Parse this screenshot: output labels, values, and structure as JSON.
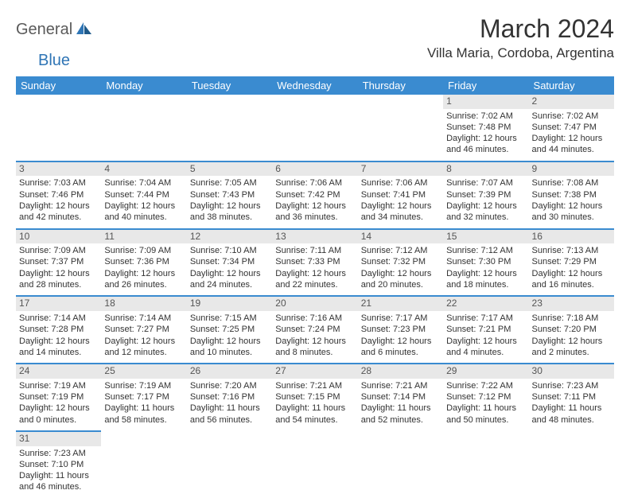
{
  "brand": {
    "text1": "General",
    "text2": "Blue"
  },
  "title": "March 2024",
  "location": "Villa Maria, Cordoba, Argentina",
  "colors": {
    "header_bg": "#3a8bd0",
    "header_text": "#ffffff",
    "daynum_bg": "#e8e8e8",
    "border": "#3a8bd0",
    "body_text": "#333333",
    "brand_gray": "#5a5a5a",
    "brand_blue": "#2f75b5",
    "background": "#ffffff"
  },
  "typography": {
    "title_fontsize": 32,
    "location_fontsize": 17,
    "header_fontsize": 13,
    "cell_fontsize": 11,
    "daynum_fontsize": 12
  },
  "daysOfWeek": [
    "Sunday",
    "Monday",
    "Tuesday",
    "Wednesday",
    "Thursday",
    "Friday",
    "Saturday"
  ],
  "weeks": [
    [
      null,
      null,
      null,
      null,
      null,
      {
        "num": "1",
        "sunrise": "7:02 AM",
        "sunset": "7:48 PM",
        "daylight": "12 hours and 46 minutes."
      },
      {
        "num": "2",
        "sunrise": "7:02 AM",
        "sunset": "7:47 PM",
        "daylight": "12 hours and 44 minutes."
      }
    ],
    [
      {
        "num": "3",
        "sunrise": "7:03 AM",
        "sunset": "7:46 PM",
        "daylight": "12 hours and 42 minutes."
      },
      {
        "num": "4",
        "sunrise": "7:04 AM",
        "sunset": "7:44 PM",
        "daylight": "12 hours and 40 minutes."
      },
      {
        "num": "5",
        "sunrise": "7:05 AM",
        "sunset": "7:43 PM",
        "daylight": "12 hours and 38 minutes."
      },
      {
        "num": "6",
        "sunrise": "7:06 AM",
        "sunset": "7:42 PM",
        "daylight": "12 hours and 36 minutes."
      },
      {
        "num": "7",
        "sunrise": "7:06 AM",
        "sunset": "7:41 PM",
        "daylight": "12 hours and 34 minutes."
      },
      {
        "num": "8",
        "sunrise": "7:07 AM",
        "sunset": "7:39 PM",
        "daylight": "12 hours and 32 minutes."
      },
      {
        "num": "9",
        "sunrise": "7:08 AM",
        "sunset": "7:38 PM",
        "daylight": "12 hours and 30 minutes."
      }
    ],
    [
      {
        "num": "10",
        "sunrise": "7:09 AM",
        "sunset": "7:37 PM",
        "daylight": "12 hours and 28 minutes."
      },
      {
        "num": "11",
        "sunrise": "7:09 AM",
        "sunset": "7:36 PM",
        "daylight": "12 hours and 26 minutes."
      },
      {
        "num": "12",
        "sunrise": "7:10 AM",
        "sunset": "7:34 PM",
        "daylight": "12 hours and 24 minutes."
      },
      {
        "num": "13",
        "sunrise": "7:11 AM",
        "sunset": "7:33 PM",
        "daylight": "12 hours and 22 minutes."
      },
      {
        "num": "14",
        "sunrise": "7:12 AM",
        "sunset": "7:32 PM",
        "daylight": "12 hours and 20 minutes."
      },
      {
        "num": "15",
        "sunrise": "7:12 AM",
        "sunset": "7:30 PM",
        "daylight": "12 hours and 18 minutes."
      },
      {
        "num": "16",
        "sunrise": "7:13 AM",
        "sunset": "7:29 PM",
        "daylight": "12 hours and 16 minutes."
      }
    ],
    [
      {
        "num": "17",
        "sunrise": "7:14 AM",
        "sunset": "7:28 PM",
        "daylight": "12 hours and 14 minutes."
      },
      {
        "num": "18",
        "sunrise": "7:14 AM",
        "sunset": "7:27 PM",
        "daylight": "12 hours and 12 minutes."
      },
      {
        "num": "19",
        "sunrise": "7:15 AM",
        "sunset": "7:25 PM",
        "daylight": "12 hours and 10 minutes."
      },
      {
        "num": "20",
        "sunrise": "7:16 AM",
        "sunset": "7:24 PM",
        "daylight": "12 hours and 8 minutes."
      },
      {
        "num": "21",
        "sunrise": "7:17 AM",
        "sunset": "7:23 PM",
        "daylight": "12 hours and 6 minutes."
      },
      {
        "num": "22",
        "sunrise": "7:17 AM",
        "sunset": "7:21 PM",
        "daylight": "12 hours and 4 minutes."
      },
      {
        "num": "23",
        "sunrise": "7:18 AM",
        "sunset": "7:20 PM",
        "daylight": "12 hours and 2 minutes."
      }
    ],
    [
      {
        "num": "24",
        "sunrise": "7:19 AM",
        "sunset": "7:19 PM",
        "daylight": "12 hours and 0 minutes."
      },
      {
        "num": "25",
        "sunrise": "7:19 AM",
        "sunset": "7:17 PM",
        "daylight": "11 hours and 58 minutes."
      },
      {
        "num": "26",
        "sunrise": "7:20 AM",
        "sunset": "7:16 PM",
        "daylight": "11 hours and 56 minutes."
      },
      {
        "num": "27",
        "sunrise": "7:21 AM",
        "sunset": "7:15 PM",
        "daylight": "11 hours and 54 minutes."
      },
      {
        "num": "28",
        "sunrise": "7:21 AM",
        "sunset": "7:14 PM",
        "daylight": "11 hours and 52 minutes."
      },
      {
        "num": "29",
        "sunrise": "7:22 AM",
        "sunset": "7:12 PM",
        "daylight": "11 hours and 50 minutes."
      },
      {
        "num": "30",
        "sunrise": "7:23 AM",
        "sunset": "7:11 PM",
        "daylight": "11 hours and 48 minutes."
      }
    ],
    [
      {
        "num": "31",
        "sunrise": "7:23 AM",
        "sunset": "7:10 PM",
        "daylight": "11 hours and 46 minutes."
      },
      null,
      null,
      null,
      null,
      null,
      null
    ]
  ],
  "labels": {
    "sunrise": "Sunrise: ",
    "sunset": "Sunset: ",
    "daylight": "Daylight: "
  }
}
